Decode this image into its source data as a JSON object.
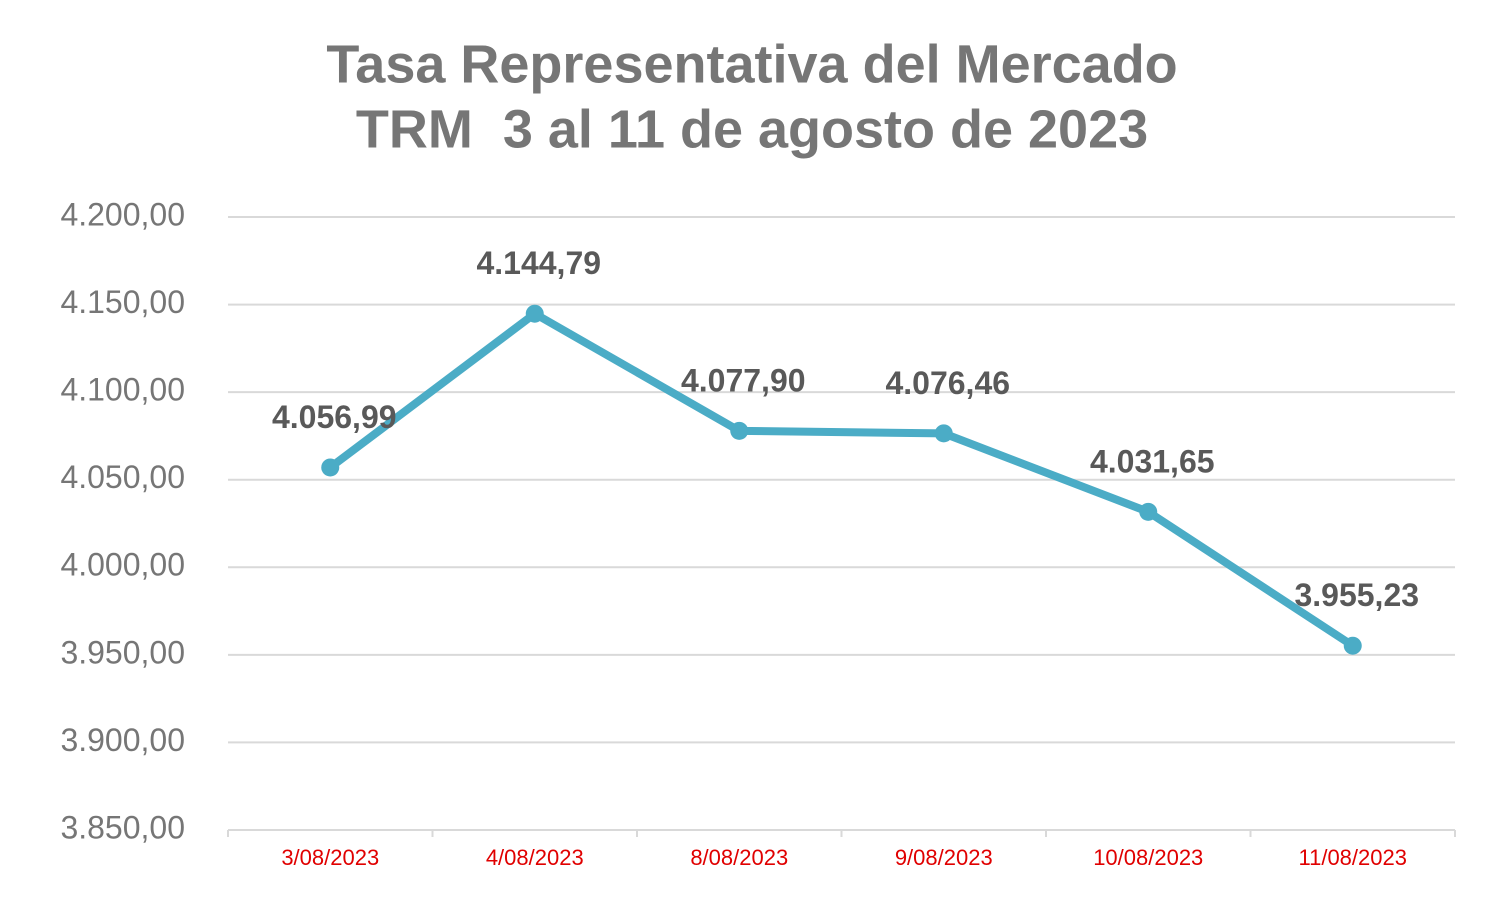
{
  "chart_data": {
    "type": "line",
    "title": [
      "Tasa Representativa del Mercado",
      "TRM  3 al 11 de agosto de 2023"
    ],
    "categories": [
      "3/08/2023",
      "4/08/2023",
      "8/08/2023",
      "9/08/2023",
      "10/08/2023",
      "11/08/2023"
    ],
    "values": [
      4056.99,
      4144.79,
      4077.9,
      4076.46,
      4031.65,
      3955.23
    ],
    "value_labels": [
      "4.056,99",
      "4.144,79",
      "4.077,90",
      "4.076,46",
      "4.031,65",
      "3.955,23"
    ],
    "color": "#4bacc6",
    "ylim": [
      3850,
      4200
    ],
    "yticks": [
      {
        "value": 3850,
        "label": "3.850,00"
      },
      {
        "value": 3900,
        "label": "3.900,00"
      },
      {
        "value": 3950,
        "label": "3.950,00"
      },
      {
        "value": 4000,
        "label": "4.000,00"
      },
      {
        "value": 4050,
        "label": "4.050,00"
      },
      {
        "value": 4100,
        "label": "4.100,00"
      },
      {
        "value": 4150,
        "label": "4.150,00"
      },
      {
        "value": 4200,
        "label": "4.200,00"
      }
    ],
    "grid": true
  }
}
